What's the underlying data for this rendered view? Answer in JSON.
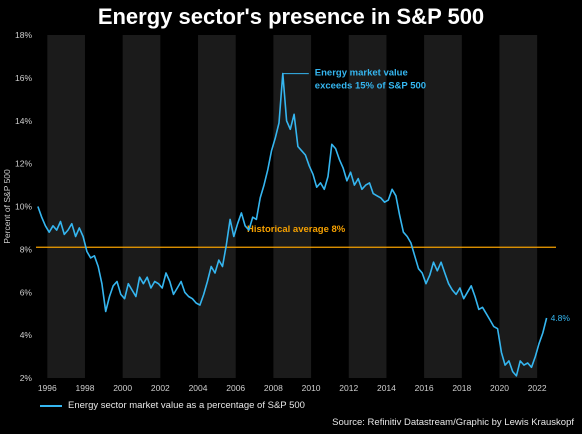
{
  "colors": {
    "background": "#000000",
    "band": "#1b1b1b",
    "series": "#35b6f0",
    "average": "#f5a000",
    "text": "#e8e8e8"
  },
  "chart_data": {
    "type": "line",
    "title": "Energy sector's presence in S&P 500",
    "ylabel": "Percent of S&P 500",
    "xlabel": "",
    "xlim": [
      1995.4,
      2023.0
    ],
    "ylim": [
      2,
      18
    ],
    "x_ticks": [
      "1996",
      "1998",
      "2000",
      "2002",
      "2004",
      "2006",
      "2008",
      "2010",
      "2012",
      "2014",
      "2016",
      "2018",
      "2020",
      "2022"
    ],
    "y_ticks": [
      "2%",
      "4%",
      "6%",
      "8%",
      "10%",
      "12%",
      "14%",
      "16%",
      "18%"
    ],
    "shaded_bands": [
      [
        1996,
        1998
      ],
      [
        2000,
        2002
      ],
      [
        2004,
        2006
      ],
      [
        2008,
        2010
      ],
      [
        2012,
        2014
      ],
      [
        2016,
        2018
      ],
      [
        2020,
        2022
      ]
    ],
    "reference_line": {
      "value": 8.1,
      "label": "Historical average 8%"
    },
    "annotation_peak": {
      "line1": "Energy market value",
      "line2": "exceeds 15% of S&P 500",
      "x": 2008.5,
      "y": 16.2
    },
    "end_label": "4.8%",
    "series": [
      {
        "name": "Energy sector market value as a percentage of S&P 500",
        "points": [
          [
            1995.5,
            10.0
          ],
          [
            1995.7,
            9.5
          ],
          [
            1995.9,
            9.1
          ],
          [
            1996.1,
            8.8
          ],
          [
            1996.3,
            9.1
          ],
          [
            1996.5,
            8.9
          ],
          [
            1996.7,
            9.3
          ],
          [
            1996.9,
            8.7
          ],
          [
            1997.1,
            8.9
          ],
          [
            1997.3,
            9.2
          ],
          [
            1997.5,
            8.6
          ],
          [
            1997.7,
            9.0
          ],
          [
            1997.9,
            8.6
          ],
          [
            1998.1,
            7.9
          ],
          [
            1998.3,
            7.6
          ],
          [
            1998.5,
            7.7
          ],
          [
            1998.7,
            7.2
          ],
          [
            1998.9,
            6.4
          ],
          [
            1999.1,
            5.1
          ],
          [
            1999.3,
            5.8
          ],
          [
            1999.5,
            6.3
          ],
          [
            1999.7,
            6.5
          ],
          [
            1999.9,
            5.9
          ],
          [
            2000.1,
            5.7
          ],
          [
            2000.3,
            6.4
          ],
          [
            2000.5,
            6.1
          ],
          [
            2000.7,
            5.8
          ],
          [
            2000.9,
            6.7
          ],
          [
            2001.1,
            6.4
          ],
          [
            2001.3,
            6.7
          ],
          [
            2001.5,
            6.2
          ],
          [
            2001.7,
            6.5
          ],
          [
            2001.9,
            6.4
          ],
          [
            2002.1,
            6.2
          ],
          [
            2002.3,
            6.9
          ],
          [
            2002.5,
            6.5
          ],
          [
            2002.7,
            5.9
          ],
          [
            2002.9,
            6.2
          ],
          [
            2003.1,
            6.5
          ],
          [
            2003.3,
            6.0
          ],
          [
            2003.5,
            5.8
          ],
          [
            2003.7,
            5.7
          ],
          [
            2003.9,
            5.5
          ],
          [
            2004.1,
            5.4
          ],
          [
            2004.3,
            5.9
          ],
          [
            2004.5,
            6.5
          ],
          [
            2004.7,
            7.2
          ],
          [
            2004.9,
            6.9
          ],
          [
            2005.1,
            7.5
          ],
          [
            2005.3,
            7.2
          ],
          [
            2005.5,
            8.2
          ],
          [
            2005.7,
            9.4
          ],
          [
            2005.9,
            8.6
          ],
          [
            2006.1,
            9.2
          ],
          [
            2006.3,
            9.7
          ],
          [
            2006.5,
            9.1
          ],
          [
            2006.7,
            8.9
          ],
          [
            2006.9,
            9.5
          ],
          [
            2007.1,
            9.4
          ],
          [
            2007.3,
            10.4
          ],
          [
            2007.5,
            11.0
          ],
          [
            2007.7,
            11.7
          ],
          [
            2007.9,
            12.6
          ],
          [
            2008.1,
            13.2
          ],
          [
            2008.3,
            13.9
          ],
          [
            2008.5,
            16.2
          ],
          [
            2008.7,
            14.0
          ],
          [
            2008.9,
            13.6
          ],
          [
            2009.1,
            14.3
          ],
          [
            2009.3,
            12.8
          ],
          [
            2009.5,
            12.6
          ],
          [
            2009.7,
            12.4
          ],
          [
            2009.9,
            11.9
          ],
          [
            2010.1,
            11.5
          ],
          [
            2010.3,
            10.9
          ],
          [
            2010.5,
            11.1
          ],
          [
            2010.7,
            10.8
          ],
          [
            2010.9,
            11.4
          ],
          [
            2011.1,
            12.9
          ],
          [
            2011.3,
            12.7
          ],
          [
            2011.5,
            12.2
          ],
          [
            2011.7,
            11.8
          ],
          [
            2011.9,
            11.2
          ],
          [
            2012.1,
            11.6
          ],
          [
            2012.3,
            11.0
          ],
          [
            2012.5,
            11.3
          ],
          [
            2012.7,
            10.8
          ],
          [
            2012.9,
            11.0
          ],
          [
            2013.1,
            11.1
          ],
          [
            2013.3,
            10.6
          ],
          [
            2013.5,
            10.5
          ],
          [
            2013.7,
            10.4
          ],
          [
            2013.9,
            10.2
          ],
          [
            2014.1,
            10.3
          ],
          [
            2014.3,
            10.8
          ],
          [
            2014.5,
            10.5
          ],
          [
            2014.7,
            9.6
          ],
          [
            2014.9,
            8.8
          ],
          [
            2015.1,
            8.6
          ],
          [
            2015.3,
            8.3
          ],
          [
            2015.5,
            7.7
          ],
          [
            2015.7,
            7.1
          ],
          [
            2015.9,
            6.9
          ],
          [
            2016.1,
            6.4
          ],
          [
            2016.3,
            6.8
          ],
          [
            2016.5,
            7.4
          ],
          [
            2016.7,
            7.0
          ],
          [
            2016.9,
            7.4
          ],
          [
            2017.1,
            6.9
          ],
          [
            2017.3,
            6.4
          ],
          [
            2017.5,
            6.1
          ],
          [
            2017.7,
            5.9
          ],
          [
            2017.9,
            6.2
          ],
          [
            2018.1,
            5.7
          ],
          [
            2018.3,
            6.0
          ],
          [
            2018.5,
            6.3
          ],
          [
            2018.7,
            5.8
          ],
          [
            2018.9,
            5.2
          ],
          [
            2019.1,
            5.3
          ],
          [
            2019.3,
            5.0
          ],
          [
            2019.5,
            4.7
          ],
          [
            2019.7,
            4.4
          ],
          [
            2019.9,
            4.3
          ],
          [
            2020.1,
            3.2
          ],
          [
            2020.3,
            2.6
          ],
          [
            2020.5,
            2.8
          ],
          [
            2020.7,
            2.3
          ],
          [
            2020.9,
            2.1
          ],
          [
            2021.1,
            2.8
          ],
          [
            2021.3,
            2.6
          ],
          [
            2021.5,
            2.7
          ],
          [
            2021.7,
            2.5
          ],
          [
            2021.9,
            3.0
          ],
          [
            2022.1,
            3.6
          ],
          [
            2022.3,
            4.1
          ],
          [
            2022.5,
            4.8
          ]
        ]
      }
    ]
  },
  "legend_label": "Energy sector market value as a percentage of S&P 500",
  "source_text": "Source: Refinitiv Datastream/Graphic by Lewis Krauskopf"
}
